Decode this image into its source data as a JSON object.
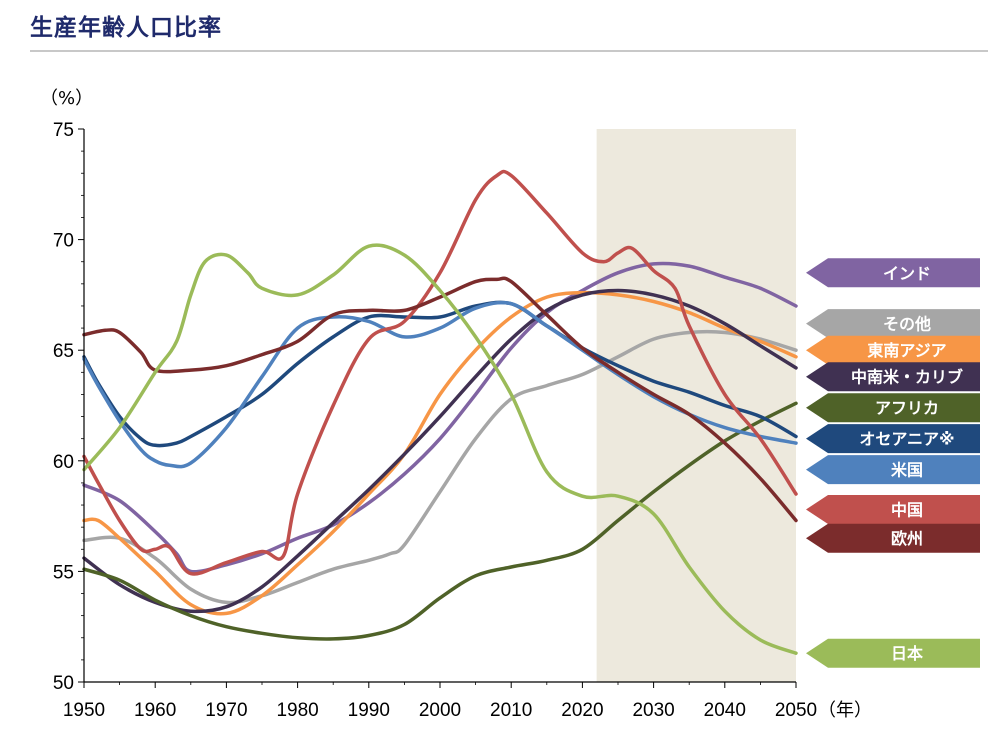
{
  "title": "生産年齢人口比率",
  "chart_data": {
    "type": "line",
    "title": "生産年齢人口比率",
    "ylabel": "（%）",
    "xlabel": "（年）",
    "xlim": [
      1950,
      2050
    ],
    "ylim": [
      50,
      75
    ],
    "x_ticks": [
      "1950",
      "1960",
      "1970",
      "1980",
      "1990",
      "2000",
      "2010",
      "2020",
      "2030",
      "2040",
      "2050"
    ],
    "y_ticks": [
      "50",
      "55",
      "60",
      "65",
      "70",
      "75"
    ],
    "shaded_region": [
      2022,
      2050
    ],
    "legend": "right side, labels at line ends",
    "colors": {
      "shade": "#ede9dd",
      "axis": "#000000"
    },
    "series": [
      {
        "name": "インド",
        "color": "#8064a2",
        "label_y": 68.5,
        "points": [
          [
            1950,
            58.9
          ],
          [
            1955,
            58.2
          ],
          [
            1960,
            56.8
          ],
          [
            1963,
            55.8
          ],
          [
            1965,
            55.0
          ],
          [
            1970,
            55.3
          ],
          [
            1975,
            55.8
          ],
          [
            1980,
            56.5
          ],
          [
            1985,
            57.1
          ],
          [
            1990,
            58.1
          ],
          [
            1995,
            59.4
          ],
          [
            2000,
            61.0
          ],
          [
            2005,
            63.0
          ],
          [
            2010,
            65.1
          ],
          [
            2015,
            66.7
          ],
          [
            2020,
            67.7
          ],
          [
            2025,
            68.5
          ],
          [
            2030,
            68.9
          ],
          [
            2035,
            68.8
          ],
          [
            2040,
            68.3
          ],
          [
            2045,
            67.8
          ],
          [
            2050,
            67.0
          ]
        ]
      },
      {
        "name": "その他",
        "color": "#a6a6a6",
        "label_y": 66.2,
        "points": [
          [
            1950,
            56.4
          ],
          [
            1955,
            56.5
          ],
          [
            1960,
            55.6
          ],
          [
            1965,
            54.2
          ],
          [
            1970,
            53.6
          ],
          [
            1975,
            53.9
          ],
          [
            1980,
            54.5
          ],
          [
            1985,
            55.1
          ],
          [
            1990,
            55.5
          ],
          [
            1993,
            55.8
          ],
          [
            1995,
            56.2
          ],
          [
            2000,
            58.6
          ],
          [
            2005,
            61.0
          ],
          [
            2010,
            62.8
          ],
          [
            2015,
            63.4
          ],
          [
            2020,
            63.9
          ],
          [
            2025,
            64.7
          ],
          [
            2030,
            65.5
          ],
          [
            2035,
            65.8
          ],
          [
            2040,
            65.8
          ],
          [
            2045,
            65.5
          ],
          [
            2050,
            65.0
          ]
        ]
      },
      {
        "name": "東南アジア",
        "color": "#f79646",
        "label_y": 65.0,
        "points": [
          [
            1950,
            57.3
          ],
          [
            1952,
            57.3
          ],
          [
            1955,
            56.5
          ],
          [
            1960,
            55.0
          ],
          [
            1965,
            53.5
          ],
          [
            1970,
            53.1
          ],
          [
            1975,
            53.9
          ],
          [
            1980,
            55.3
          ],
          [
            1985,
            56.8
          ],
          [
            1990,
            58.5
          ],
          [
            1995,
            60.3
          ],
          [
            2000,
            63.0
          ],
          [
            2005,
            65.0
          ],
          [
            2010,
            66.5
          ],
          [
            2015,
            67.4
          ],
          [
            2020,
            67.6
          ],
          [
            2025,
            67.5
          ],
          [
            2030,
            67.2
          ],
          [
            2035,
            66.7
          ],
          [
            2040,
            66.0
          ],
          [
            2045,
            65.4
          ],
          [
            2050,
            64.7
          ]
        ]
      },
      {
        "name": "中南米・カリブ",
        "color": "#403152",
        "label_y": 63.8,
        "points": [
          [
            1950,
            55.6
          ],
          [
            1955,
            54.4
          ],
          [
            1960,
            53.6
          ],
          [
            1965,
            53.2
          ],
          [
            1970,
            53.4
          ],
          [
            1975,
            54.3
          ],
          [
            1980,
            55.7
          ],
          [
            1985,
            57.2
          ],
          [
            1990,
            58.7
          ],
          [
            1995,
            60.3
          ],
          [
            2000,
            62.0
          ],
          [
            2005,
            63.8
          ],
          [
            2010,
            65.5
          ],
          [
            2015,
            66.8
          ],
          [
            2020,
            67.5
          ],
          [
            2025,
            67.7
          ],
          [
            2030,
            67.5
          ],
          [
            2035,
            67.0
          ],
          [
            2040,
            66.2
          ],
          [
            2045,
            65.2
          ],
          [
            2050,
            64.2
          ]
        ]
      },
      {
        "name": "アフリカ",
        "color": "#4f6228",
        "label_y": 62.4,
        "points": [
          [
            1950,
            55.1
          ],
          [
            1955,
            54.6
          ],
          [
            1960,
            53.7
          ],
          [
            1965,
            53.0
          ],
          [
            1970,
            52.5
          ],
          [
            1975,
            52.2
          ],
          [
            1980,
            52.0
          ],
          [
            1985,
            51.95
          ],
          [
            1990,
            52.1
          ],
          [
            1995,
            52.6
          ],
          [
            2000,
            53.8
          ],
          [
            2005,
            54.8
          ],
          [
            2010,
            55.2
          ],
          [
            2015,
            55.5
          ],
          [
            2020,
            56.0
          ],
          [
            2025,
            57.3
          ],
          [
            2030,
            58.6
          ],
          [
            2035,
            59.8
          ],
          [
            2040,
            60.9
          ],
          [
            2045,
            61.8
          ],
          [
            2050,
            62.6
          ]
        ]
      },
      {
        "name": "オセアニア※",
        "color": "#1f497d",
        "label_y": 61.0,
        "points": [
          [
            1950,
            64.7
          ],
          [
            1952,
            63.5
          ],
          [
            1955,
            62.0
          ],
          [
            1958,
            61.0
          ],
          [
            1960,
            60.7
          ],
          [
            1963,
            60.8
          ],
          [
            1965,
            61.1
          ],
          [
            1970,
            62.0
          ],
          [
            1975,
            63.0
          ],
          [
            1980,
            64.4
          ],
          [
            1985,
            65.6
          ],
          [
            1990,
            66.5
          ],
          [
            1995,
            66.5
          ],
          [
            2000,
            66.5
          ],
          [
            2005,
            67.0
          ],
          [
            2010,
            67.1
          ],
          [
            2015,
            66.1
          ],
          [
            2020,
            65.1
          ],
          [
            2025,
            64.3
          ],
          [
            2030,
            63.6
          ],
          [
            2035,
            63.1
          ],
          [
            2040,
            62.5
          ],
          [
            2045,
            62.0
          ],
          [
            2050,
            61.1
          ]
        ]
      },
      {
        "name": "米国",
        "color": "#4f81bd",
        "label_y": 59.6,
        "points": [
          [
            1950,
            64.6
          ],
          [
            1952,
            63.4
          ],
          [
            1955,
            61.8
          ],
          [
            1958,
            60.5
          ],
          [
            1960,
            60.0
          ],
          [
            1962,
            59.8
          ],
          [
            1965,
            59.9
          ],
          [
            1970,
            61.5
          ],
          [
            1975,
            63.8
          ],
          [
            1980,
            66.0
          ],
          [
            1985,
            66.5
          ],
          [
            1990,
            66.3
          ],
          [
            1995,
            65.6
          ],
          [
            2000,
            66.0
          ],
          [
            2005,
            66.9
          ],
          [
            2010,
            67.1
          ],
          [
            2015,
            66.1
          ],
          [
            2020,
            65.0
          ],
          [
            2025,
            63.9
          ],
          [
            2030,
            62.9
          ],
          [
            2035,
            62.1
          ],
          [
            2040,
            61.5
          ],
          [
            2045,
            61.1
          ],
          [
            2050,
            60.8
          ]
        ]
      },
      {
        "name": "中国",
        "color": "#c0504d",
        "label_y": 57.8,
        "points": [
          [
            1950,
            60.2
          ],
          [
            1952,
            59.0
          ],
          [
            1955,
            57.3
          ],
          [
            1958,
            56.0
          ],
          [
            1960,
            56.0
          ],
          [
            1962,
            56.1
          ],
          [
            1965,
            54.9
          ],
          [
            1970,
            55.4
          ],
          [
            1975,
            55.9
          ],
          [
            1978,
            55.7
          ],
          [
            1980,
            58.5
          ],
          [
            1985,
            62.5
          ],
          [
            1990,
            65.5
          ],
          [
            1995,
            66.3
          ],
          [
            2000,
            68.5
          ],
          [
            2005,
            71.8
          ],
          [
            2008,
            72.9
          ],
          [
            2010,
            72.9
          ],
          [
            2015,
            71.2
          ],
          [
            2020,
            69.4
          ],
          [
            2023,
            69.0
          ],
          [
            2025,
            69.4
          ],
          [
            2027,
            69.6
          ],
          [
            2030,
            68.6
          ],
          [
            2033,
            67.8
          ],
          [
            2035,
            66.1
          ],
          [
            2040,
            63.0
          ],
          [
            2045,
            61.0
          ],
          [
            2050,
            58.5
          ]
        ]
      },
      {
        "name": "欧州",
        "color": "#7b2c2c",
        "label_y": 56.5,
        "points": [
          [
            1950,
            65.7
          ],
          [
            1953,
            65.9
          ],
          [
            1955,
            65.8
          ],
          [
            1958,
            64.9
          ],
          [
            1960,
            64.1
          ],
          [
            1965,
            64.1
          ],
          [
            1970,
            64.3
          ],
          [
            1975,
            64.8
          ],
          [
            1980,
            65.4
          ],
          [
            1985,
            66.6
          ],
          [
            1990,
            66.8
          ],
          [
            1995,
            66.8
          ],
          [
            2000,
            67.4
          ],
          [
            2005,
            68.1
          ],
          [
            2008,
            68.2
          ],
          [
            2010,
            68.1
          ],
          [
            2015,
            66.6
          ],
          [
            2020,
            65.1
          ],
          [
            2025,
            64.0
          ],
          [
            2030,
            63.0
          ],
          [
            2035,
            62.1
          ],
          [
            2040,
            60.8
          ],
          [
            2045,
            59.2
          ],
          [
            2050,
            57.3
          ]
        ]
      },
      {
        "name": "日本",
        "color": "#9bbb59",
        "label_y": 51.3,
        "points": [
          [
            1950,
            59.6
          ],
          [
            1955,
            61.5
          ],
          [
            1960,
            64.0
          ],
          [
            1963,
            65.4
          ],
          [
            1965,
            67.5
          ],
          [
            1967,
            69.0
          ],
          [
            1970,
            69.3
          ],
          [
            1973,
            68.5
          ],
          [
            1975,
            67.8
          ],
          [
            1980,
            67.5
          ],
          [
            1985,
            68.4
          ],
          [
            1990,
            69.7
          ],
          [
            1995,
            69.3
          ],
          [
            2000,
            67.7
          ],
          [
            2005,
            65.6
          ],
          [
            2010,
            63.0
          ],
          [
            2015,
            59.5
          ],
          [
            2020,
            58.4
          ],
          [
            2025,
            58.4
          ],
          [
            2030,
            57.6
          ],
          [
            2035,
            55.2
          ],
          [
            2040,
            53.2
          ],
          [
            2045,
            51.9
          ],
          [
            2050,
            51.3
          ]
        ]
      }
    ]
  }
}
